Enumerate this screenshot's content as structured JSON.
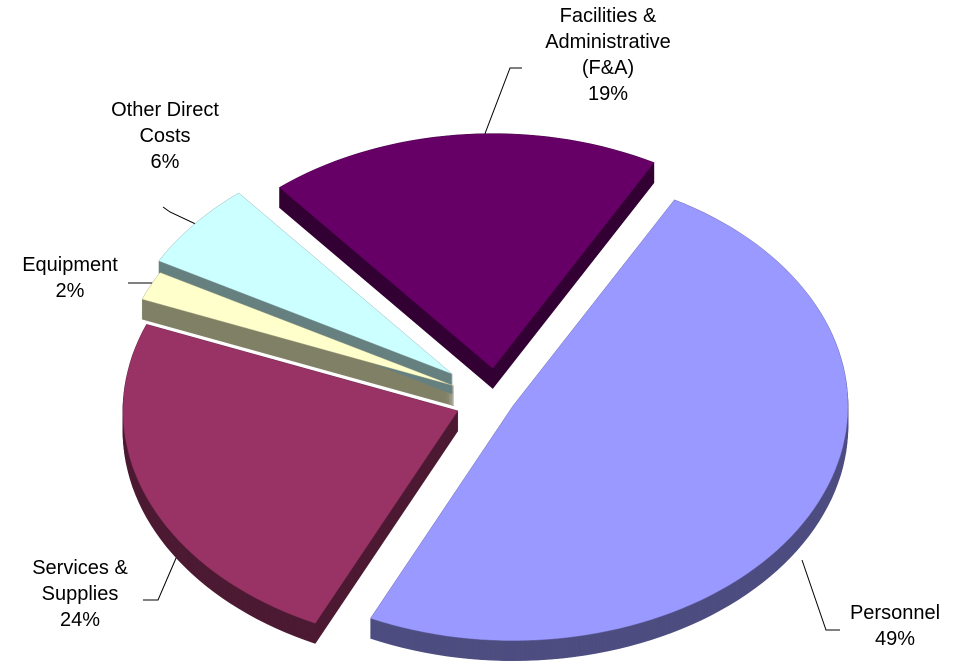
{
  "chart_data": {
    "type": "pie",
    "categories": [
      "Facilities & Administrative (F&A)",
      "Personnel",
      "Services & Supplies",
      "Equipment",
      "Other Direct Costs"
    ],
    "values": [
      19,
      49,
      24,
      2,
      6
    ],
    "value_labels": [
      "19%",
      "49%",
      "24%",
      "2%",
      "6%"
    ],
    "colors": [
      "#660066",
      "#9999ff",
      "#993366",
      "#ffffcc",
      "#ccffff"
    ]
  }
}
